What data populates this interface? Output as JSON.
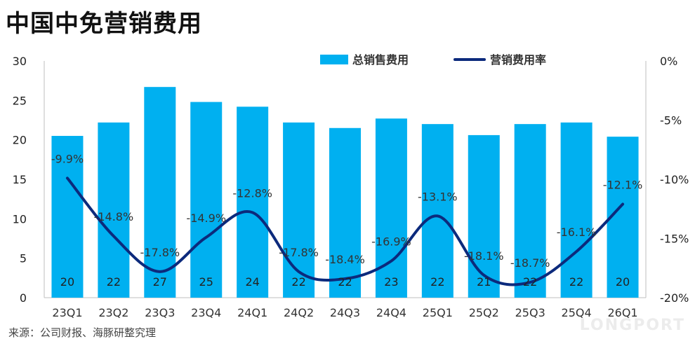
{
  "title": "中国中免营销费用",
  "source": "来源：公司财报、海豚研整究理",
  "watermark": "LONGPORT",
  "chart_data": {
    "type": "bar",
    "title": "中国中免营销费用",
    "categories": [
      "23Q1",
      "23Q2",
      "23Q3",
      "23Q4",
      "24Q1",
      "24Q2",
      "24Q3",
      "24Q4",
      "25Q1",
      "25Q2",
      "25Q3",
      "25Q4",
      "26Q1"
    ],
    "series": [
      {
        "name": "总销售费用",
        "type": "bar",
        "axis": "left",
        "color": "#00b0f0",
        "values": [
          20.5,
          22.2,
          26.7,
          24.8,
          24.2,
          22.2,
          21.5,
          22.7,
          22.0,
          20.6,
          22.0,
          22.2,
          20.4
        ],
        "labels": [
          "20",
          "22",
          "27",
          "25",
          "24",
          "22",
          "22",
          "23",
          "22",
          "21",
          "22",
          "22",
          "20"
        ]
      },
      {
        "name": "营销费用率",
        "type": "line",
        "axis": "right",
        "color": "#0c2a7c",
        "values": [
          -9.9,
          -14.8,
          -17.8,
          -14.9,
          -12.8,
          -17.8,
          -18.4,
          -16.9,
          -13.1,
          -18.1,
          -18.7,
          -16.1,
          -12.1
        ],
        "labels": [
          "-9.9%",
          "-14.8%",
          "-17.8%",
          "-14.9%",
          "-12.8%",
          "-17.8%",
          "-18.4%",
          "-16.9%",
          "-13.1%",
          "-18.1%",
          "-18.7%",
          "-16.1%",
          "-12.1%"
        ]
      }
    ],
    "left_axis": {
      "ylim": [
        0,
        30
      ],
      "ticks": [
        "0",
        "5",
        "10",
        "15",
        "20",
        "25",
        "30"
      ]
    },
    "right_axis": {
      "ylim": [
        -20,
        0
      ],
      "ticks": [
        "-20%",
        "-15%",
        "-10%",
        "-5%",
        "0%"
      ]
    },
    "legend": {
      "position": "top-right"
    },
    "grid": false
  }
}
